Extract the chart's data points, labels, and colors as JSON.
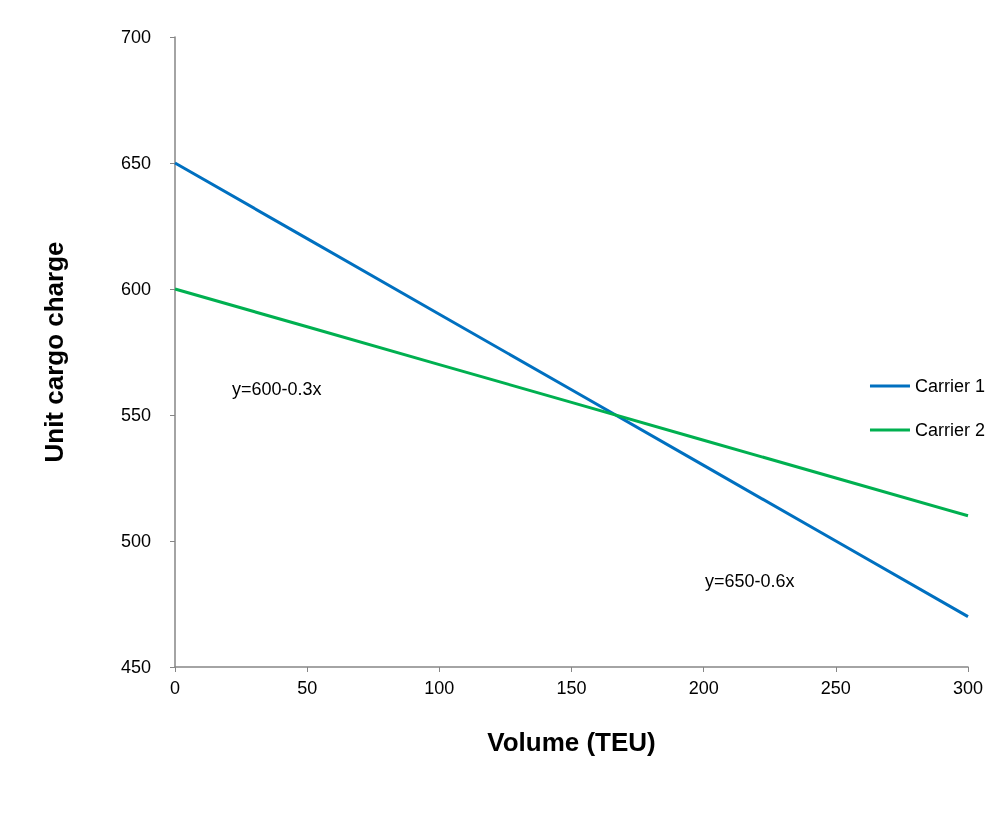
{
  "chart_data": {
    "type": "line",
    "xlabel": "Volume (TEU)",
    "ylabel": "Unit cargo charge",
    "x": [
      0,
      50,
      100,
      150,
      200,
      250,
      300
    ],
    "series": [
      {
        "name": "Carrier 1",
        "color": "#0070c0",
        "values": [
          650,
          620,
          590,
          560,
          530,
          500,
          470
        ]
      },
      {
        "name": "Carrier 2",
        "color": "#00b050",
        "values": [
          600,
          585,
          570,
          555,
          540,
          525,
          510
        ]
      }
    ],
    "xlim": [
      0,
      300
    ],
    "xticks": [
      0,
      50,
      100,
      150,
      200,
      250,
      300
    ],
    "ylim": [
      450,
      700
    ],
    "yticks": [
      450,
      500,
      550,
      600,
      650,
      700
    ],
    "annotations": [
      "y=600-0.3x",
      "y=650-0.6x"
    ],
    "grid": false,
    "legend": "right",
    "marker": "none",
    "line_style": "solid"
  }
}
